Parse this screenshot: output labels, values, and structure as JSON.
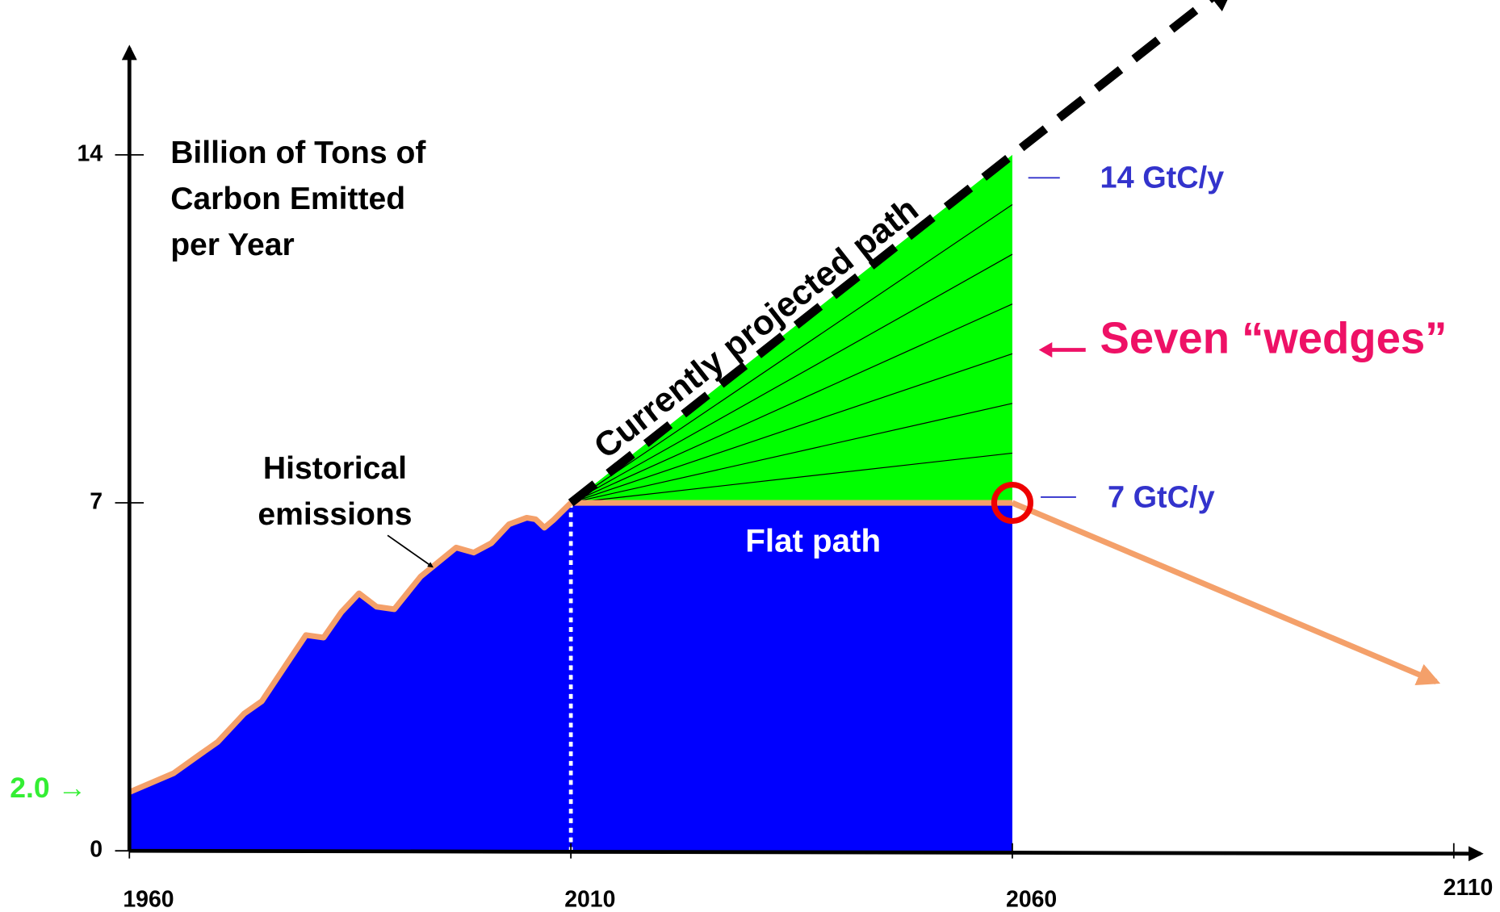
{
  "chart_data": {
    "type": "area",
    "title_lines": [
      "Billion of Tons of",
      "Carbon Emitted",
      "per Year"
    ],
    "xlim": [
      1960,
      2110
    ],
    "xticks": [
      1960,
      2010,
      2060,
      2110
    ],
    "ylim": [
      0,
      14
    ],
    "yticks": [
      0,
      7,
      14
    ],
    "historical": {
      "label_lines": [
        "Historical",
        "emissions"
      ],
      "x": [
        1960,
        1965,
        1968,
        1970,
        1973,
        1975,
        1978,
        1980,
        1982,
        1984,
        1986,
        1988,
        1990,
        1993,
        1995,
        1997,
        1999,
        2001,
        2003,
        2005,
        2006,
        2007,
        2008,
        2010
      ],
      "values": [
        1.18,
        1.56,
        1.94,
        2.19,
        2.76,
        3.01,
        3.81,
        4.34,
        4.29,
        4.8,
        5.18,
        4.91,
        4.86,
        5.52,
        5.81,
        6.1,
        6.0,
        6.19,
        6.57,
        6.7,
        6.67,
        6.5,
        6.65,
        7.0
      ]
    },
    "flat_path": {
      "label": "Flat path",
      "x": [
        2010,
        2060
      ],
      "values": [
        7,
        7
      ]
    },
    "projected_path": {
      "label": "Currently projected path",
      "x": [
        2010,
        2085
      ],
      "values": [
        7,
        17.5
      ]
    },
    "wedges": {
      "label": "Seven “wedges”",
      "x": [
        2010,
        2060
      ],
      "top": [
        7,
        14
      ],
      "lines": [
        8,
        9,
        10,
        11,
        12,
        13
      ]
    },
    "decline_path": {
      "x": [
        2060,
        2108
      ],
      "values": [
        7,
        3.4
      ]
    },
    "annotations": {
      "top": "14 GtC/y",
      "flat": "7 GtC/y",
      "start": "2.0 →"
    },
    "colors": {
      "area": "#0000ff",
      "wedge": "#00ff00",
      "line": "#f4a06a",
      "label": "#3333cc",
      "wedge_label": "#ee1166",
      "start": "#33ee33"
    }
  }
}
